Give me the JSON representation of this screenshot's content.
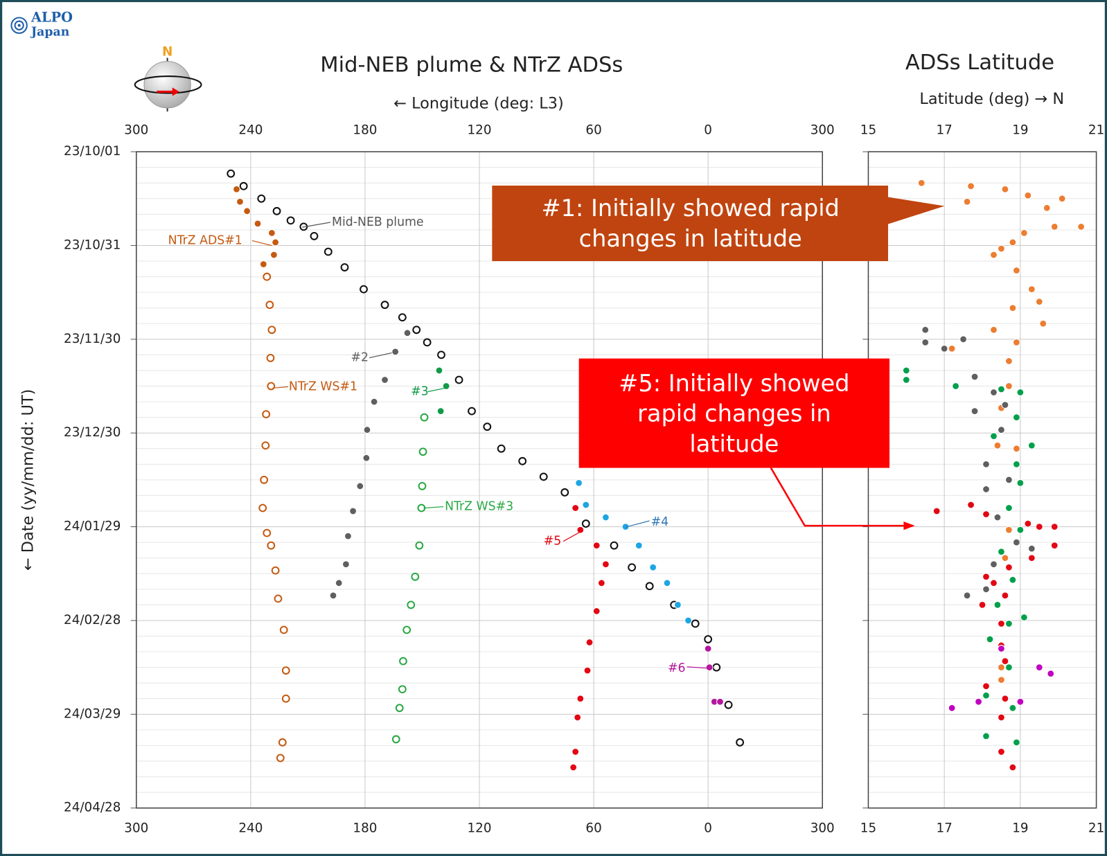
{
  "logo": {
    "line1": "ALPO",
    "line2": "Japan"
  },
  "compass_label": "N",
  "chart_data": [
    {
      "type": "scatter",
      "title": "Mid-NEB plume & NTrZ ADSs",
      "xlabel": "← Longitude (deg: L3)",
      "ylabel": "← Date (yy/mm/dd: UT)",
      "xlim": [
        300,
        -60
      ],
      "xticks": [
        300,
        240,
        180,
        120,
        60,
        0,
        {
          "value": -60,
          "label": "300"
        }
      ],
      "ylim": [
        "23/10/01",
        "24/04/28"
      ],
      "yticks": [
        "23/10/01",
        "23/10/31",
        "23/11/30",
        "23/12/30",
        "24/01/29",
        "24/02/28",
        "24/03/29",
        "24/04/28"
      ],
      "grid": true,
      "series": [
        {
          "name": "Mid-NEB plume",
          "color": "#111111",
          "filled": false,
          "x": [
            250.4,
            243.7,
            234.4,
            226.3,
            219,
            212.2,
            206.7,
            199.3,
            190.7,
            180.7,
            169.6,
            160.4,
            153,
            147.4,
            140,
            130.7,
            124,
            115.9,
            108.5,
            97.4,
            86.3,
            75.2,
            64.1,
            49.3,
            40,
            30.7,
            17.8,
            6.7,
            0,
            -4.4,
            -10.7,
            -16.7
          ],
          "y": [
            "23/10/08",
            "23/10/12",
            "23/10/16",
            "23/10/20",
            "23/10/23",
            "23/10/25",
            "23/10/28",
            "23/11/02",
            "23/11/07",
            "23/11/14",
            "23/11/19",
            "23/11/23",
            "23/11/27",
            "23/12/01",
            "23/12/05",
            "23/12/13",
            "23/12/23",
            "23/12/28",
            "24/01/04",
            "24/01/08",
            "24/01/13",
            "24/01/18",
            "24/01/28",
            "24/02/04",
            "24/02/11",
            "24/02/17",
            "24/02/23",
            "24/02/29",
            "24/03/05",
            "24/03/14",
            "24/03/26",
            "24/04/07"
          ]
        },
        {
          "name": "NTrZ ADS#1",
          "color": "#c55a11",
          "filled": true,
          "x": [
            247.4,
            245.6,
            241.9,
            236.3,
            228.9,
            227,
            227.8,
            233.3
          ],
          "y": [
            "23/10/13",
            "23/10/17",
            "23/10/20",
            "23/10/24",
            "23/10/27",
            "23/10/30",
            "23/11/03",
            "23/11/06"
          ]
        },
        {
          "name": "NTrZ WS#1",
          "color": "#c55a11",
          "filled": false,
          "x": [
            231.5,
            230,
            228.9,
            229.6,
            229.3,
            231.9,
            232.2,
            233,
            233.7,
            231.5,
            229.3,
            227,
            225.6,
            222.6,
            221.5,
            221.5,
            223.3,
            224.4
          ],
          "y": [
            "23/11/10",
            "23/11/19",
            "23/11/27",
            "23/12/06",
            "23/12/15",
            "23/12/24",
            "24/01/03",
            "24/01/14",
            "24/01/23",
            "24/01/31",
            "24/02/04",
            "24/02/12",
            "24/02/21",
            "24/03/02",
            "24/03/15",
            "24/03/24",
            "24/04/07",
            "24/04/12"
          ]
        },
        {
          "name": "#2",
          "color": "#5f5f5f",
          "filled": true,
          "x": [
            157.8,
            164.1,
            169.6,
            175.2,
            178.9,
            179.3,
            182.6,
            186.3,
            188.9,
            190,
            193.7,
            196.7
          ],
          "y": [
            "23/11/28",
            "23/12/04",
            "23/12/13",
            "23/12/20",
            "23/12/29",
            "24/01/07",
            "24/01/16",
            "24/01/24",
            "24/02/01",
            "24/02/10",
            "24/02/16",
            "24/02/20"
          ]
        },
        {
          "name": "#3",
          "color": "#119a48",
          "filled": true,
          "x": [
            141.1,
            137.4,
            140.3
          ],
          "y": [
            "23/12/10",
            "23/12/15",
            "23/12/23"
          ]
        },
        {
          "name": "NTrZ WS#3",
          "color": "#2aa845",
          "filled": false,
          "x": [
            148.9,
            149.6,
            150,
            150.4,
            151.5,
            153.7,
            155.9,
            158.1,
            160,
            160.4,
            161.9,
            163.7
          ],
          "y": [
            "23/12/25",
            "24/01/05",
            "24/01/16",
            "24/01/23",
            "24/02/04",
            "24/02/14",
            "24/02/23",
            "24/03/02",
            "24/03/12",
            "24/03/21",
            "24/03/27",
            "24/04/06"
          ]
        },
        {
          "name": "#4",
          "color": "#1ea5e3",
          "filled": true,
          "x": [
            67.8,
            64.1,
            53.7,
            43.3,
            36.3,
            28.9,
            21.5,
            15.9,
            10.4
          ],
          "y": [
            "24/01/15",
            "24/01/22",
            "24/01/26",
            "24/01/29",
            "24/02/04",
            "24/02/11",
            "24/02/16",
            "24/02/23",
            "24/02/28"
          ]
        },
        {
          "name": "#5",
          "color": "#e30613",
          "filled": true,
          "x": [
            69.6,
            67,
            58.5,
            53.7,
            55.9,
            58.5,
            62.2,
            63.3,
            67,
            68.5,
            69.6,
            70.7
          ],
          "y": [
            "24/01/23",
            "24/01/30",
            "24/02/04",
            "24/02/10",
            "24/02/16",
            "24/02/25",
            "24/03/06",
            "24/03/15",
            "24/03/24",
            "24/03/30",
            "24/04/10",
            "24/04/15"
          ]
        },
        {
          "name": "#6",
          "color": "#b5179e",
          "filled": true,
          "x": [
            0,
            -0.7,
            -3.3,
            -6.3
          ],
          "y": [
            "24/03/08",
            "24/03/14",
            "24/03/25",
            "24/03/25"
          ]
        }
      ]
    },
    {
      "type": "scatter",
      "title": "ADSs Latitude",
      "xlabel": "Latitude (deg) → N",
      "xlim": [
        15,
        21
      ],
      "xticks": [
        15,
        17,
        19,
        21
      ],
      "ylim": [
        "23/10/01",
        "24/04/28"
      ],
      "yticks": [
        "23/10/01",
        "23/10/31",
        "23/11/30",
        "23/12/30",
        "24/01/29",
        "24/02/28",
        "24/03/29",
        "24/04/28"
      ],
      "grid": true,
      "series": [
        {
          "color": "#ed7d31",
          "filled": true,
          "x": [
            16.4,
            17.7,
            18.6,
            17.6,
            19.2,
            19.7,
            20.1,
            19.9,
            20.6,
            19.1,
            18.8,
            18.5,
            18.3,
            18.9,
            19.3,
            19.5,
            18.8,
            19.6,
            18.3,
            18.9,
            17.2,
            18.7,
            18.7,
            18.5,
            18.4,
            18.9,
            18.7,
            18.6,
            18.5,
            18.5
          ],
          "y": [
            "23/10/11",
            "23/10/12",
            "23/10/13",
            "23/10/17",
            "23/10/15",
            "23/10/19",
            "23/10/16",
            "23/10/25",
            "23/10/25",
            "23/10/27",
            "23/10/30",
            "23/11/01",
            "23/11/03",
            "23/11/08",
            "23/11/14",
            "23/11/18",
            "23/11/20",
            "23/11/25",
            "23/11/27",
            "23/12/01",
            "23/12/03",
            "23/12/07",
            "23/12/15",
            "23/12/22",
            "24/01/03",
            "24/01/04",
            "24/01/30",
            "24/02/08",
            "24/03/14",
            "24/03/18"
          ]
        },
        {
          "color": "#5f5f5f",
          "filled": true,
          "x": [
            16.5,
            16.5,
            17,
            17.5,
            17.8,
            18.3,
            18.6,
            17.8,
            18.5,
            18.1,
            18.7,
            18.1,
            18.4,
            18.9,
            19.3,
            18.3,
            17.6,
            18.1
          ],
          "y": [
            "23/11/27",
            "23/12/01",
            "23/12/03",
            "23/11/30",
            "23/12/12",
            "23/12/17",
            "23/12/21",
            "23/12/23",
            "23/12/29",
            "24/01/09",
            "24/01/14",
            "24/01/17",
            "24/01/26",
            "24/02/03",
            "24/02/05",
            "24/02/10",
            "24/02/20",
            "24/02/18"
          ]
        },
        {
          "color": "#00a04b",
          "filled": true,
          "x": [
            16,
            16,
            17.3,
            18.5,
            19,
            18.9,
            18.3,
            19.3,
            18.9,
            19,
            18.7,
            19,
            18.5,
            18.8,
            18.4,
            18.7,
            19.1,
            18.2,
            18.7,
            18.1,
            18.8,
            18.1,
            18.9
          ],
          "y": [
            "23/12/10",
            "23/12/13",
            "23/12/15",
            "23/12/16",
            "23/12/17",
            "23/12/25",
            "23/12/31",
            "24/01/03",
            "24/01/09",
            "24/01/15",
            "24/01/23",
            "24/01/30",
            "24/02/06",
            "24/02/15",
            "24/02/23",
            "24/02/29",
            "24/02/27",
            "24/03/05",
            "24/03/14",
            "24/03/23",
            "24/03/27",
            "24/04/05",
            "24/04/07"
          ]
        },
        {
          "color": "#e30613",
          "filled": true,
          "x": [
            16.8,
            17.7,
            18.1,
            19.2,
            19.5,
            19.9,
            19.9,
            19.3,
            18.7,
            18.1,
            18.3,
            18,
            18.6,
            18.5,
            18.5,
            18.6,
            18.1,
            18.6,
            18.5,
            18.5,
            18.8
          ],
          "y": [
            "24/01/24",
            "24/01/22",
            "24/01/25",
            "24/01/28",
            "24/01/29",
            "24/01/29",
            "24/02/04",
            "24/02/08",
            "24/02/11",
            "24/02/14",
            "24/02/16",
            "24/02/23",
            "24/02/20",
            "24/02/29",
            "24/03/07",
            "24/03/12",
            "24/03/20",
            "24/03/24",
            "24/03/30",
            "24/04/10",
            "24/04/15"
          ]
        },
        {
          "color": "#c000c0",
          "filled": true,
          "x": [
            18.5,
            19.5,
            19.8,
            17.2,
            17.9,
            19
          ],
          "y": [
            "24/03/08",
            "24/03/14",
            "24/03/16",
            "24/03/27",
            "24/03/25",
            "24/03/25"
          ]
        }
      ],
      "annotations": [
        {
          "lines": [
            "#1: Initially showed rapid",
            "changes in latitude"
          ],
          "color": "#c0440f"
        },
        {
          "lines": [
            "#5: Initially showed",
            "rapid changes in",
            "latitude"
          ],
          "color": "#ff0000"
        }
      ]
    }
  ]
}
